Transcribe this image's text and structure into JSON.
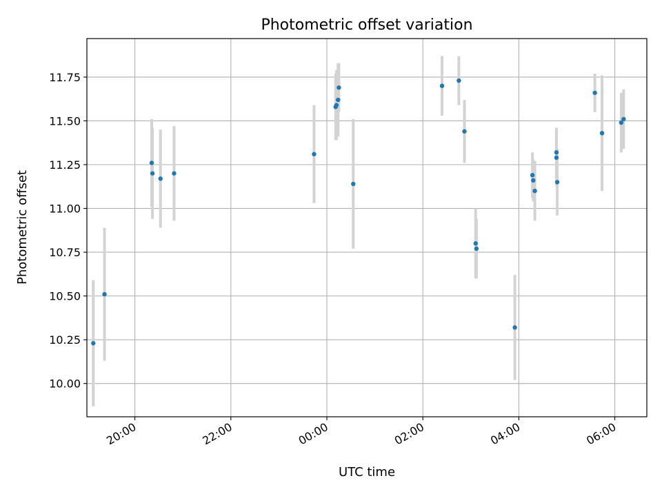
{
  "chart_data": {
    "type": "scatter",
    "title": "Photometric offset variation",
    "xlabel": "UTC time",
    "ylabel": "Photometric offset",
    "grid": true,
    "colors": {
      "points": "#1f77b4",
      "error_bars": "#d3d3d3",
      "grid": "#b0b0b0",
      "axes": "#000000"
    },
    "xlim": [
      "19:00",
      "06:40"
    ],
    "ylim": [
      9.81,
      11.97
    ],
    "x_ticks": [
      "20:00",
      "22:00",
      "00:00",
      "02:00",
      "04:00",
      "06:00"
    ],
    "y_ticks": [
      "10.00",
      "10.25",
      "10.50",
      "10.75",
      "11.00",
      "11.25",
      "11.50",
      "11.75"
    ],
    "series": [
      {
        "x": [
          "19:08",
          "19:22",
          "20:21",
          "20:22",
          "20:32",
          "20:49",
          "23:44",
          "00:11",
          "00:12",
          "00:14",
          "00:15",
          "00:33",
          "02:24",
          "02:45",
          "02:52",
          "03:06",
          "03:07",
          "03:55",
          "04:17",
          "04:18",
          "04:20",
          "04:47",
          "04:47",
          "04:48",
          "05:35",
          "05:44",
          "06:08",
          "06:11"
        ],
        "y": [
          10.23,
          10.51,
          11.26,
          11.2,
          11.17,
          11.2,
          11.31,
          11.58,
          11.59,
          11.62,
          11.69,
          11.14,
          11.7,
          11.73,
          11.44,
          10.8,
          10.77,
          10.32,
          11.19,
          11.16,
          11.1,
          11.32,
          11.29,
          11.15,
          11.66,
          11.43,
          11.49,
          11.51
        ],
        "yerr": [
          0.36,
          0.38,
          0.25,
          0.26,
          0.28,
          0.27,
          0.28,
          0.19,
          0.2,
          0.21,
          0.14,
          0.37,
          0.17,
          0.14,
          0.18,
          0.2,
          0.17,
          0.3,
          0.13,
          0.12,
          0.17,
          0.14,
          0.16,
          0.19,
          0.11,
          0.33,
          0.17,
          0.17
        ]
      }
    ]
  }
}
